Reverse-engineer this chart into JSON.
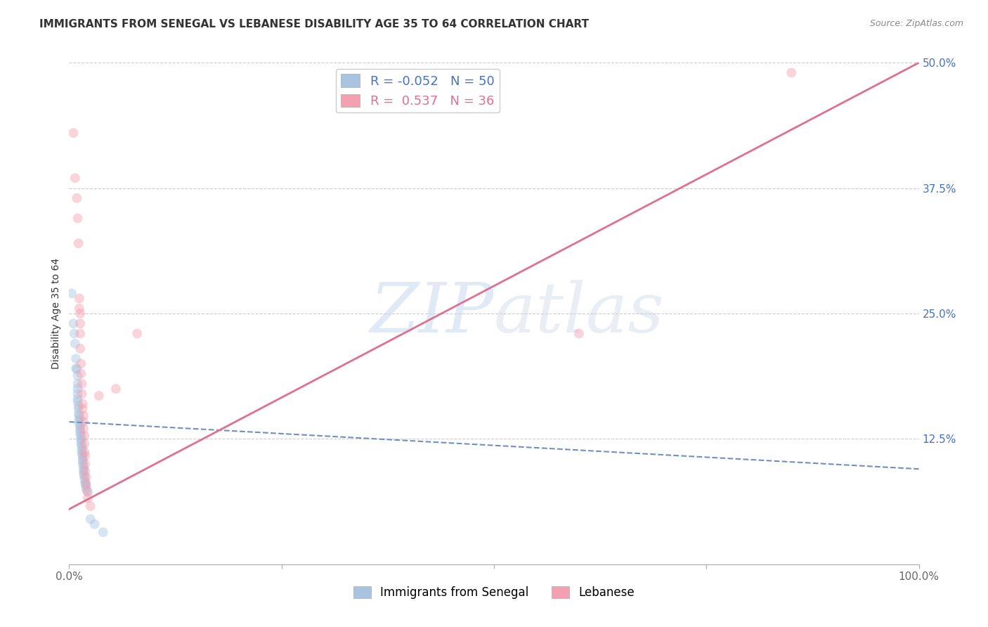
{
  "title": "IMMIGRANTS FROM SENEGAL VS LEBANESE DISABILITY AGE 35 TO 64 CORRELATION CHART",
  "source": "Source: ZipAtlas.com",
  "ylabel": "Disability Age 35 to 64",
  "xlim": [
    0.0,
    1.0
  ],
  "ylim": [
    0.0,
    0.5
  ],
  "yticks": [
    0.0,
    0.125,
    0.25,
    0.375,
    0.5
  ],
  "ytick_labels": [
    "",
    "12.5%",
    "25.0%",
    "37.5%",
    "50.0%"
  ],
  "xticks": [
    0.0,
    0.25,
    0.5,
    0.75,
    1.0
  ],
  "xtick_labels": [
    "0.0%",
    "",
    "",
    "",
    "100.0%"
  ],
  "legend_entries": [
    {
      "label": "Immigrants from Senegal",
      "R": "-0.052",
      "N": "50",
      "color": "#a8c4e0"
    },
    {
      "label": "Lebanese",
      "R": "0.537",
      "N": "36",
      "color": "#f4a0b0"
    }
  ],
  "watermark_zip": "ZIP",
  "watermark_atlas": "atlas",
  "blue_scatter": [
    [
      0.003,
      0.27
    ],
    [
      0.005,
      0.24
    ],
    [
      0.006,
      0.23
    ],
    [
      0.007,
      0.22
    ],
    [
      0.008,
      0.205
    ],
    [
      0.008,
      0.195
    ],
    [
      0.009,
      0.195
    ],
    [
      0.01,
      0.188
    ],
    [
      0.01,
      0.18
    ],
    [
      0.01,
      0.175
    ],
    [
      0.01,
      0.17
    ],
    [
      0.01,
      0.165
    ],
    [
      0.01,
      0.162
    ],
    [
      0.011,
      0.158
    ],
    [
      0.011,
      0.155
    ],
    [
      0.011,
      0.15
    ],
    [
      0.012,
      0.148
    ],
    [
      0.012,
      0.145
    ],
    [
      0.012,
      0.143
    ],
    [
      0.012,
      0.14
    ],
    [
      0.013,
      0.138
    ],
    [
      0.013,
      0.135
    ],
    [
      0.013,
      0.133
    ],
    [
      0.013,
      0.13
    ],
    [
      0.014,
      0.128
    ],
    [
      0.014,
      0.125
    ],
    [
      0.014,
      0.123
    ],
    [
      0.014,
      0.12
    ],
    [
      0.015,
      0.118
    ],
    [
      0.015,
      0.115
    ],
    [
      0.015,
      0.113
    ],
    [
      0.015,
      0.11
    ],
    [
      0.016,
      0.108
    ],
    [
      0.016,
      0.105
    ],
    [
      0.016,
      0.103
    ],
    [
      0.016,
      0.1
    ],
    [
      0.017,
      0.098
    ],
    [
      0.017,
      0.095
    ],
    [
      0.017,
      0.093
    ],
    [
      0.017,
      0.09
    ],
    [
      0.018,
      0.088
    ],
    [
      0.018,
      0.085
    ],
    [
      0.019,
      0.082
    ],
    [
      0.019,
      0.08
    ],
    [
      0.02,
      0.078
    ],
    [
      0.02,
      0.075
    ],
    [
      0.022,
      0.072
    ],
    [
      0.025,
      0.045
    ],
    [
      0.03,
      0.04
    ],
    [
      0.04,
      0.032
    ]
  ],
  "pink_scatter": [
    [
      0.005,
      0.43
    ],
    [
      0.007,
      0.385
    ],
    [
      0.009,
      0.365
    ],
    [
      0.01,
      0.345
    ],
    [
      0.011,
      0.32
    ],
    [
      0.012,
      0.265
    ],
    [
      0.012,
      0.255
    ],
    [
      0.013,
      0.25
    ],
    [
      0.013,
      0.24
    ],
    [
      0.013,
      0.23
    ],
    [
      0.013,
      0.215
    ],
    [
      0.014,
      0.2
    ],
    [
      0.014,
      0.19
    ],
    [
      0.015,
      0.18
    ],
    [
      0.015,
      0.17
    ],
    [
      0.016,
      0.16
    ],
    [
      0.016,
      0.155
    ],
    [
      0.017,
      0.148
    ],
    [
      0.017,
      0.142
    ],
    [
      0.017,
      0.135
    ],
    [
      0.018,
      0.128
    ],
    [
      0.018,
      0.12
    ],
    [
      0.018,
      0.112
    ],
    [
      0.019,
      0.108
    ],
    [
      0.019,
      0.1
    ],
    [
      0.019,
      0.093
    ],
    [
      0.02,
      0.087
    ],
    [
      0.02,
      0.08
    ],
    [
      0.021,
      0.073
    ],
    [
      0.022,
      0.066
    ],
    [
      0.025,
      0.058
    ],
    [
      0.035,
      0.168
    ],
    [
      0.055,
      0.175
    ],
    [
      0.08,
      0.23
    ],
    [
      0.6,
      0.23
    ],
    [
      0.85,
      0.49
    ]
  ],
  "blue_line_color": "#7090c0",
  "pink_line_color": "#e07090",
  "blue_line_y0": 0.142,
  "blue_line_y1": 0.095,
  "pink_line_y0": 0.055,
  "pink_line_y1": 0.5,
  "background_color": "#ffffff",
  "scatter_alpha": 0.45,
  "scatter_size": 100,
  "title_fontsize": 11,
  "axis_label_fontsize": 10,
  "tick_fontsize": 11,
  "legend_fontsize": 13,
  "ytick_color": "#4472c4",
  "xtick_color": "#666666",
  "grid_color": "#cccccc",
  "blue_color": "#a8c4e0",
  "pink_color": "#f4a0b0"
}
